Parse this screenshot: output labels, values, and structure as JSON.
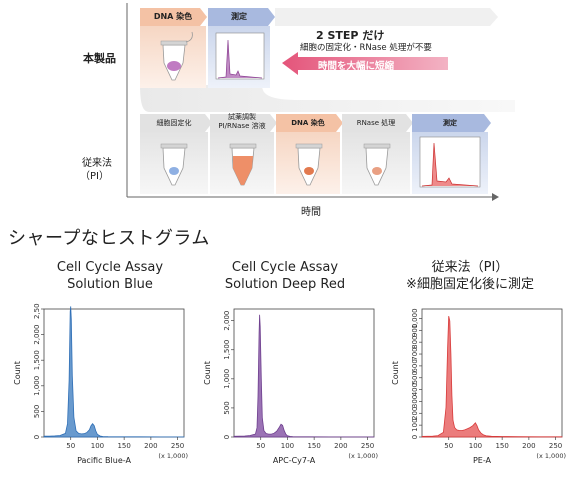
{
  "top": {
    "product_label": "本製品",
    "conventional_label_1": "従来法",
    "conventional_label_2": "（PI）",
    "time_label": "時間",
    "product_steps": [
      "DNA 染色",
      "測定"
    ],
    "two_step_title": "2 STEP だけ",
    "two_step_sub": "細胞の固定化・RNase 処理が不要",
    "shorten_text": "時間を大幅に短縮",
    "conventional_steps": [
      "細胞固定化",
      "試薬調製",
      "PI/RNase 溶液",
      "DNA 染色",
      "RNase 処理",
      "測定"
    ]
  },
  "section_title": "シャープなヒストグラム",
  "charts": [
    {
      "title_1": "Cell Cycle Assay",
      "title_2": "Solution Blue",
      "ylabel": "Count",
      "xlabel": "Pacific Blue-A",
      "x_mult": "(x 1,000)",
      "color": "#2f6fb6",
      "fill": "#4f88c6",
      "yticks": [
        "0",
        "500",
        "1,000",
        "1,500",
        "2,000",
        "2,500"
      ],
      "xticks": [
        "50",
        "100",
        "150",
        "200",
        "250"
      ]
    },
    {
      "title_1": "Cell Cycle Assay",
      "title_2": "Solution Deep Red",
      "ylabel": "Count",
      "xlabel": "APC-Cy7-A",
      "x_mult": "(x 1,000)",
      "color": "#6e3f8e",
      "fill": "#8a5ba8",
      "yticks": [
        "0",
        "500",
        "1,000",
        "1,500",
        "2,000"
      ],
      "xticks": [
        "50",
        "100",
        "150",
        "200",
        "250"
      ]
    },
    {
      "title_1": "従来法（PI）",
      "title_2": "※細胞固定化後に測定",
      "ylabel": "Count",
      "xlabel": "PE-A",
      "x_mult": "(x 1,000)",
      "color": "#d83a3a",
      "fill": "#e86565",
      "yticks": [
        "0",
        "100",
        "200",
        "300",
        "400",
        "500",
        "600",
        "700",
        "800",
        "900",
        "1,000"
      ],
      "xticks": [
        "50",
        "100",
        "150",
        "200",
        "250"
      ]
    }
  ],
  "chart_data": [
    {
      "type": "area",
      "x_unit": "x 1,000",
      "ylim": [
        0,
        2500
      ],
      "xlim": [
        0,
        262
      ],
      "x": [
        0,
        10,
        20,
        30,
        40,
        44,
        47,
        49,
        50,
        51,
        53,
        56,
        60,
        65,
        70,
        75,
        80,
        85,
        88,
        91,
        94,
        97,
        100,
        105,
        110,
        120,
        140,
        180,
        220,
        262
      ],
      "y": [
        15,
        18,
        22,
        30,
        70,
        260,
        1100,
        2450,
        2550,
        2300,
        1200,
        380,
        120,
        70,
        60,
        65,
        85,
        140,
        220,
        260,
        220,
        120,
        50,
        20,
        10,
        6,
        4,
        3,
        2,
        2
      ]
    },
    {
      "type": "area",
      "x_unit": "x 1,000",
      "ylim": [
        0,
        2200
      ],
      "xlim": [
        0,
        262
      ],
      "x": [
        0,
        10,
        20,
        30,
        40,
        43,
        45,
        47,
        48,
        49,
        51,
        53,
        56,
        60,
        65,
        70,
        75,
        80,
        85,
        88,
        91,
        94,
        97,
        100,
        105,
        110,
        120,
        140,
        180,
        220,
        262
      ],
      "y": [
        12,
        15,
        18,
        25,
        50,
        160,
        700,
        1800,
        2100,
        1900,
        1000,
        330,
        110,
        60,
        50,
        50,
        65,
        100,
        170,
        220,
        200,
        110,
        50,
        20,
        10,
        6,
        4,
        3,
        2,
        2,
        2
      ]
    },
    {
      "type": "area",
      "x_unit": "x 1,000",
      "ylim": [
        0,
        1080
      ],
      "xlim": [
        0,
        262
      ],
      "x": [
        0,
        10,
        20,
        30,
        40,
        45,
        48,
        50,
        52,
        54,
        56,
        58,
        61,
        65,
        70,
        75,
        80,
        85,
        90,
        95,
        100,
        103,
        106,
        110,
        115,
        120,
        130,
        150,
        180,
        220,
        262
      ],
      "y": [
        5,
        6,
        8,
        12,
        40,
        250,
        750,
        1020,
        980,
        700,
        350,
        140,
        80,
        60,
        55,
        55,
        60,
        70,
        80,
        95,
        120,
        95,
        60,
        35,
        18,
        10,
        6,
        4,
        3,
        2,
        2
      ]
    }
  ]
}
